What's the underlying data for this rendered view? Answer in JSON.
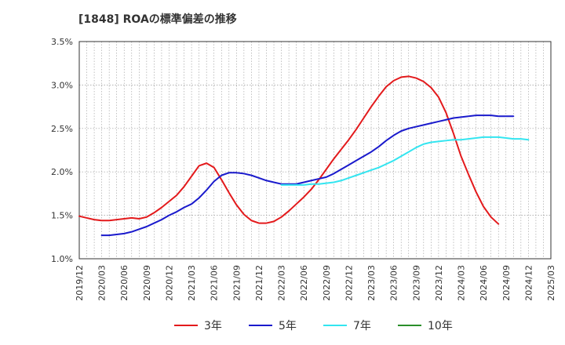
{
  "title": "[1848]  ROAの標準偏差の推移",
  "chart_data": {
    "type": "line",
    "title": "[1848]  ROAの標準偏差の推移",
    "xlabel": "",
    "ylabel": "",
    "ylim": [
      1.0,
      3.5
    ],
    "yticks": [
      "1.0%",
      "1.5%",
      "2.0%",
      "2.5%",
      "3.0%",
      "3.5%"
    ],
    "yticks_values": [
      1.0,
      1.5,
      2.0,
      2.5,
      3.0,
      3.5
    ],
    "xticks": [
      "2019/12",
      "2020/03",
      "2020/06",
      "2020/09",
      "2020/12",
      "2021/03",
      "2021/06",
      "2021/09",
      "2021/12",
      "2022/03",
      "2022/06",
      "2022/09",
      "2022/12",
      "2023/03",
      "2023/06",
      "2023/09",
      "2023/12",
      "2024/03",
      "2024/06",
      "2024/09",
      "2024/12",
      "2025/03"
    ],
    "grid": true,
    "legend_position": "bottom",
    "series": [
      {
        "name": "3年",
        "color": "#e31a1c",
        "start": "2019/12",
        "values": [
          1.49,
          1.47,
          1.45,
          1.44,
          1.44,
          1.45,
          1.46,
          1.47,
          1.46,
          1.48,
          1.53,
          1.59,
          1.66,
          1.73,
          1.83,
          1.95,
          2.07,
          2.1,
          2.05,
          1.91,
          1.76,
          1.62,
          1.51,
          1.44,
          1.41,
          1.41,
          1.43,
          1.48,
          1.55,
          1.63,
          1.71,
          1.8,
          1.91,
          2.03,
          2.15,
          2.26,
          2.37,
          2.49,
          2.62,
          2.75,
          2.87,
          2.98,
          3.05,
          3.09,
          3.1,
          3.08,
          3.04,
          2.97,
          2.86,
          2.68,
          2.44,
          2.18,
          1.97,
          1.77,
          1.6,
          1.48,
          1.4
        ]
      },
      {
        "name": "5年",
        "color": "#1a1acc",
        "start": "2020/03",
        "values": [
          1.27,
          1.27,
          1.28,
          1.29,
          1.31,
          1.34,
          1.37,
          1.41,
          1.45,
          1.5,
          1.54,
          1.59,
          1.63,
          1.7,
          1.79,
          1.89,
          1.96,
          1.99,
          1.99,
          1.98,
          1.96,
          1.93,
          1.9,
          1.88,
          1.86,
          1.86,
          1.86,
          1.88,
          1.9,
          1.92,
          1.94,
          1.98,
          2.03,
          2.08,
          2.13,
          2.18,
          2.23,
          2.29,
          2.36,
          2.42,
          2.47,
          2.5,
          2.52,
          2.54,
          2.56,
          2.58,
          2.6,
          2.62,
          2.63,
          2.64,
          2.65,
          2.65,
          2.65,
          2.64,
          2.64,
          2.64
        ]
      },
      {
        "name": "7年",
        "color": "#33e5f0",
        "start": "2022/03",
        "values": [
          1.85,
          1.85,
          1.85,
          1.85,
          1.86,
          1.86,
          1.87,
          1.88,
          1.9,
          1.93,
          1.96,
          1.99,
          2.02,
          2.05,
          2.09,
          2.13,
          2.18,
          2.23,
          2.28,
          2.32,
          2.34,
          2.35,
          2.36,
          2.37,
          2.37,
          2.38,
          2.39,
          2.4,
          2.4,
          2.4,
          2.39,
          2.38,
          2.38,
          2.37
        ]
      },
      {
        "name": "10年",
        "color": "#2a8f2a",
        "start": "2025/03",
        "values": []
      }
    ]
  }
}
